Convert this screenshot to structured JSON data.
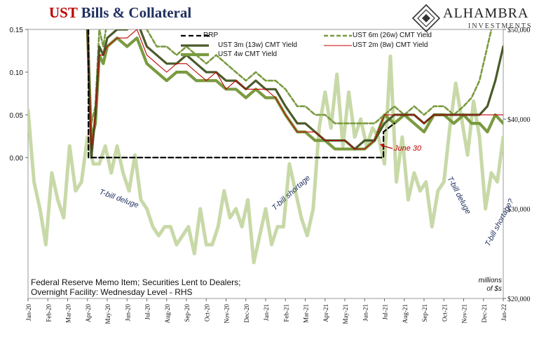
{
  "title": {
    "part1": "UST",
    "part2": "Bills & Collateral"
  },
  "logo": {
    "name": "ALHAMBRA",
    "sub": "INVESTMENTS"
  },
  "legend": {
    "rrp": "RRP",
    "ust3m": "UST 3m (13w) CMT Yield",
    "ust4w": "UST 4w CMT Yield",
    "ust6m": "UST 6m (26w) CMT Yield",
    "ust2m": "UST 2m (8w) CMT Yield"
  },
  "annotations": {
    "deluge1": "T-bill deluge",
    "shortage1": "T-bill shortage",
    "deluge2": "T-bill deluge",
    "shortage2": "T-bill shortage?",
    "june30": "June 30"
  },
  "note": {
    "line1": "Federal Reserve Memo Item; Securities Lent to Dealers;",
    "line2": "Overnight Facility: Wednesday Level - RHS"
  },
  "units": {
    "line1": "millions",
    "line2": "of $s"
  },
  "colors": {
    "rrp": "#000000",
    "ust3m": "#4a5a2a",
    "ust4w": "#7a9a40",
    "ust6m": "#7a9a40",
    "ust2m": "#c00000",
    "sec_lent": "#c8d9a8",
    "title_red": "#c00000",
    "title_navy": "#1f2f5e",
    "annotation": "#1f2f5e"
  },
  "chart_data": {
    "type": "line",
    "x_ticks": [
      "Jan-20",
      "Feb-20",
      "Mar-20",
      "Apr-20",
      "May-20",
      "Jun-20",
      "Jul-20",
      "Aug-20",
      "Sep-20",
      "Oct-20",
      "Nov-20",
      "Dec-20",
      "Jan-21",
      "Feb-21",
      "Mar-21",
      "Apr-21",
      "May-21",
      "Jun-21",
      "Jul-21",
      "Aug-21",
      "Sep-21",
      "Oct-21",
      "Nov-21",
      "Dec-21",
      "Jan-22"
    ],
    "y_left": {
      "ticks": [
        "0.15",
        "0.10",
        "0.05",
        "0.00"
      ],
      "range": [
        -0.165,
        0.15
      ]
    },
    "y_right": {
      "ticks": [
        "$50,000",
        "$40,000",
        "$30,000",
        "$20,000"
      ],
      "range": [
        20000,
        50000
      ]
    },
    "grid": false,
    "series": [
      {
        "name": "RRP",
        "axis": "left",
        "style": "dashed",
        "x": [
          3.05,
          3.05,
          3.1,
          17.95,
          17.95,
          18.5
        ],
        "y": [
          0.15,
          0.0,
          0.0,
          0.0,
          0.03,
          0.04
        ]
      },
      {
        "name": "UST 6m (26w) CMT Yield",
        "axis": "left",
        "style": "dashed",
        "x": [
          3.0,
          3.2,
          3.4,
          3.6,
          3.8,
          4.0,
          4.5,
          5.0,
          5.5,
          6.0,
          6.5,
          7.0,
          7.5,
          8.0,
          8.5,
          9.0,
          9.5,
          10.0,
          10.5,
          11.0,
          11.5,
          12.0,
          12.5,
          13.0,
          13.3,
          13.6,
          14.0,
          14.5,
          15.0,
          15.5,
          16.0,
          16.5,
          17.0,
          17.5,
          18.0,
          18.5,
          19.0,
          19.5,
          20.0,
          20.5,
          21.0,
          21.5,
          22.0,
          22.4,
          22.8,
          23.2,
          23.6,
          24.0
        ],
        "y": [
          0.15,
          0.04,
          0.06,
          0.15,
          0.13,
          0.16,
          0.15,
          0.16,
          0.17,
          0.15,
          0.13,
          0.13,
          0.12,
          0.13,
          0.12,
          0.11,
          0.12,
          0.11,
          0.1,
          0.09,
          0.1,
          0.09,
          0.09,
          0.08,
          0.07,
          0.06,
          0.06,
          0.05,
          0.05,
          0.04,
          0.04,
          0.04,
          0.04,
          0.04,
          0.05,
          0.06,
          0.05,
          0.06,
          0.05,
          0.06,
          0.06,
          0.05,
          0.06,
          0.07,
          0.09,
          0.13,
          0.17,
          0.19
        ]
      },
      {
        "name": "UST 3m (13w) CMT Yield",
        "axis": "left",
        "style": "solid",
        "x": [
          3.0,
          3.2,
          3.4,
          3.6,
          3.8,
          4.0,
          4.5,
          5.0,
          5.5,
          6.0,
          6.5,
          7.0,
          7.5,
          8.0,
          8.5,
          9.0,
          9.5,
          10.0,
          10.5,
          11.0,
          11.5,
          12.0,
          12.5,
          13.0,
          13.3,
          13.6,
          14.0,
          14.5,
          15.0,
          15.5,
          16.0,
          16.5,
          17.0,
          17.5,
          18.0,
          18.5,
          19.0,
          19.5,
          20.0,
          20.5,
          21.0,
          21.5,
          22.0,
          22.4,
          22.8,
          23.2,
          23.6,
          24.0
        ],
        "y": [
          0.15,
          0.0,
          0.05,
          0.13,
          0.12,
          0.14,
          0.15,
          0.15,
          0.16,
          0.13,
          0.12,
          0.11,
          0.11,
          0.12,
          0.11,
          0.1,
          0.1,
          0.09,
          0.09,
          0.08,
          0.09,
          0.08,
          0.08,
          0.06,
          0.05,
          0.04,
          0.04,
          0.03,
          0.02,
          0.02,
          0.02,
          0.01,
          0.02,
          0.02,
          0.04,
          0.05,
          0.05,
          0.05,
          0.04,
          0.05,
          0.05,
          0.05,
          0.05,
          0.05,
          0.05,
          0.06,
          0.09,
          0.13
        ]
      },
      {
        "name": "UST 2m (8w) CMT Yield",
        "axis": "left",
        "style": "solid",
        "x": [
          3.0,
          3.2,
          3.4,
          3.6,
          3.8,
          4.0,
          4.5,
          5.0,
          5.5,
          6.0,
          6.5,
          7.0,
          7.5,
          8.0,
          8.5,
          9.0,
          9.5,
          10.0,
          10.5,
          11.0,
          11.5,
          12.0,
          12.5,
          13.0,
          13.3,
          13.6,
          14.0,
          14.5,
          15.0,
          15.5,
          16.0,
          16.5,
          17.0,
          17.5,
          18.0,
          18.5,
          19.0,
          19.5,
          20.0,
          20.5,
          21.0,
          21.5,
          22.0,
          22.4,
          22.8,
          23.2,
          23.6,
          24.0
        ],
        "y": [
          0.15,
          0.01,
          0.05,
          0.12,
          0.12,
          0.13,
          0.14,
          0.14,
          0.15,
          0.12,
          0.11,
          0.1,
          0.11,
          0.11,
          0.1,
          0.09,
          0.1,
          0.08,
          0.09,
          0.08,
          0.08,
          0.08,
          0.07,
          0.05,
          0.04,
          0.03,
          0.03,
          0.03,
          0.02,
          0.02,
          0.02,
          0.01,
          0.01,
          0.02,
          0.05,
          0.05,
          0.05,
          0.05,
          0.04,
          0.05,
          0.05,
          0.05,
          0.05,
          0.05,
          0.05,
          0.05,
          0.05,
          0.05
        ]
      },
      {
        "name": "UST 4w CMT Yield",
        "axis": "left",
        "style": "solid",
        "x": [
          3.0,
          3.2,
          3.4,
          3.6,
          3.8,
          4.0,
          4.5,
          5.0,
          5.5,
          6.0,
          6.5,
          7.0,
          7.5,
          8.0,
          8.5,
          9.0,
          9.5,
          10.0,
          10.5,
          11.0,
          11.5,
          12.0,
          12.5,
          13.0,
          13.3,
          13.6,
          14.0,
          14.5,
          15.0,
          15.5,
          16.0,
          16.5,
          17.0,
          17.5,
          18.0,
          18.5,
          19.0,
          19.5,
          20.0,
          20.5,
          21.0,
          21.5,
          22.0,
          22.4,
          22.8,
          23.2,
          23.6,
          24.0
        ],
        "y": [
          0.15,
          0.02,
          0.04,
          0.12,
          0.11,
          0.13,
          0.14,
          0.13,
          0.14,
          0.11,
          0.1,
          0.09,
          0.1,
          0.1,
          0.09,
          0.09,
          0.09,
          0.08,
          0.08,
          0.07,
          0.08,
          0.07,
          0.07,
          0.05,
          0.04,
          0.03,
          0.03,
          0.02,
          0.02,
          0.01,
          0.01,
          0.01,
          0.01,
          0.02,
          0.05,
          0.04,
          0.05,
          0.04,
          0.03,
          0.05,
          0.05,
          0.04,
          0.05,
          0.04,
          0.04,
          0.03,
          0.05,
          0.04
        ]
      },
      {
        "name": "Securities Lent to Dealers",
        "axis": "right",
        "style": "solid",
        "x": [
          0.0,
          0.3,
          0.6,
          0.9,
          1.2,
          1.5,
          1.8,
          2.1,
          2.4,
          2.7,
          3.0,
          3.3,
          3.6,
          3.9,
          4.2,
          4.5,
          4.8,
          5.1,
          5.4,
          5.7,
          6.0,
          6.3,
          6.6,
          6.9,
          7.2,
          7.5,
          7.8,
          8.1,
          8.4,
          8.7,
          9.0,
          9.3,
          9.6,
          9.9,
          10.2,
          10.5,
          10.8,
          11.1,
          11.4,
          11.7,
          12.0,
          12.3,
          12.6,
          12.9,
          13.2,
          13.5,
          13.8,
          14.1,
          14.4,
          14.7,
          15.0,
          15.3,
          15.6,
          15.9,
          16.2,
          16.5,
          16.8,
          17.1,
          17.4,
          17.7,
          18.0,
          18.3,
          18.6,
          18.9,
          19.2,
          19.5,
          19.8,
          20.1,
          20.4,
          20.7,
          21.0,
          21.3,
          21.6,
          21.9,
          22.2,
          22.5,
          22.8,
          23.1,
          23.4,
          23.7,
          24.0
        ],
        "y": [
          41000,
          33000,
          30000,
          26000,
          34000,
          31000,
          29000,
          37000,
          32000,
          33000,
          38000,
          35000,
          35000,
          37000,
          34000,
          37000,
          34000,
          32000,
          36000,
          31000,
          30000,
          28000,
          27000,
          28000,
          28000,
          26000,
          27000,
          28000,
          25000,
          30000,
          26000,
          26000,
          28000,
          32000,
          29000,
          30000,
          28000,
          31000,
          24000,
          27000,
          30000,
          26000,
          28000,
          28000,
          35000,
          32000,
          29000,
          27000,
          30000,
          39000,
          43000,
          39000,
          45000,
          37000,
          43000,
          38000,
          40000,
          37000,
          39000,
          38000,
          35000,
          47000,
          33000,
          38000,
          31000,
          34000,
          32000,
          33000,
          28000,
          32000,
          33000,
          39000,
          44000,
          40000,
          36000,
          42000,
          38000,
          30000,
          34000,
          33000,
          38000
        ]
      }
    ]
  }
}
